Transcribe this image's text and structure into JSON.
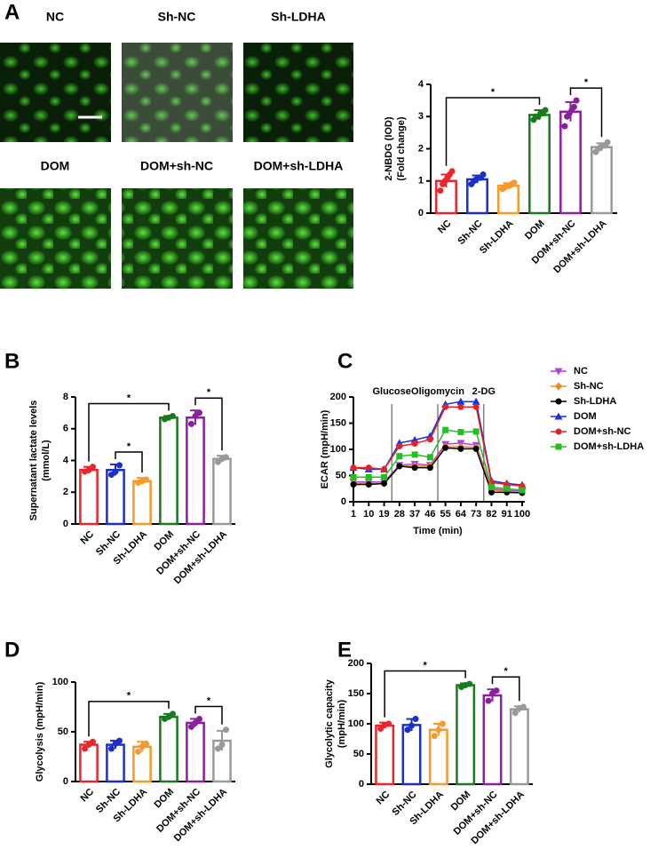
{
  "images": {
    "labels": [
      "NC",
      "Sh-NC",
      "Sh-LDHA",
      "DOM",
      "DOM+sh-NC",
      "DOM+sh-LDHA"
    ]
  },
  "chart_data": [
    {
      "type": "bar",
      "panel": "A",
      "ylabel": [
        "2-NBDG (IOD)",
        "(Fold change)"
      ],
      "categories": [
        "NC",
        "Sh-NC",
        "Sh-LDHA",
        "DOM",
        "DOM+sh-NC",
        "DOM+sh-LDHA"
      ],
      "values": [
        1.0,
        1.05,
        0.85,
        3.05,
        3.15,
        2.05
      ],
      "errors": [
        0.2,
        0.12,
        0.08,
        0.15,
        0.3,
        0.12
      ],
      "points": [
        [
          0.7,
          0.9,
          1.0,
          1.1,
          1.2,
          1.3
        ],
        [
          0.9,
          1.0,
          1.05,
          1.1,
          1.1,
          1.2
        ],
        [
          0.75,
          0.8,
          0.85,
          0.85,
          0.9,
          0.95
        ],
        [
          2.9,
          3.0,
          3.0,
          3.1,
          3.1,
          3.2
        ],
        [
          2.7,
          3.0,
          3.1,
          3.2,
          3.3,
          3.5
        ],
        [
          1.9,
          2.0,
          2.05,
          2.1,
          2.1,
          2.2
        ]
      ],
      "colors": [
        "#e8262b",
        "#1b2fc9",
        "#f59a2b",
        "#1a7a1f",
        "#8b1f9e",
        "#999999"
      ],
      "ylim": [
        0,
        4
      ],
      "yticks": [
        0,
        1,
        2,
        3,
        4
      ],
      "comparisons": [
        {
          "from": 0,
          "to": 3,
          "label": "*"
        },
        {
          "from": 4,
          "to": 5,
          "label": "*"
        }
      ]
    },
    {
      "type": "bar",
      "panel": "B",
      "ylabel": [
        "Supernatant lactate levels",
        "(mmol/L)"
      ],
      "categories": [
        "NC",
        "Sh-NC",
        "Sh-LDHA",
        "DOM",
        "DOM+sh-NC",
        "DOM+sh-LDHA"
      ],
      "values": [
        3.4,
        3.4,
        2.7,
        6.7,
        6.7,
        4.1
      ],
      "errors": [
        0.2,
        0.35,
        0.2,
        0.1,
        0.45,
        0.2
      ],
      "points": [
        [
          3.3,
          3.4,
          3.6
        ],
        [
          3.1,
          3.3,
          3.7
        ],
        [
          2.6,
          2.7,
          2.8
        ],
        [
          6.6,
          6.7,
          6.8
        ],
        [
          6.3,
          6.8,
          7.0
        ],
        [
          3.9,
          4.1,
          4.2
        ]
      ],
      "colors": [
        "#e8262b",
        "#1b2fc9",
        "#f59a2b",
        "#1a7a1f",
        "#8b1f9e",
        "#999999"
      ],
      "ylim": [
        0,
        8
      ],
      "yticks": [
        0,
        2,
        4,
        6,
        8
      ],
      "comparisons": [
        {
          "from": 0,
          "to": 3,
          "label": "*"
        },
        {
          "from": 1,
          "to": 2,
          "label": "*"
        },
        {
          "from": 4,
          "to": 5,
          "label": "*"
        }
      ]
    },
    {
      "type": "line",
      "panel": "C",
      "ylabel": "ECAR (mpH/min)",
      "xlabel": "Time (min)",
      "x": [
        1,
        10,
        19,
        28,
        37,
        46,
        55,
        64,
        73,
        82,
        91,
        100
      ],
      "xlim": [
        1,
        100
      ],
      "xticks": [
        1,
        10,
        19,
        28,
        37,
        46,
        55,
        64,
        73,
        82,
        91,
        100
      ],
      "ylim": [
        0,
        200
      ],
      "yticks": [
        0,
        50,
        100,
        150,
        200
      ],
      "legend": "right",
      "annotations": [
        {
          "x": 23.5,
          "label": "Glucose"
        },
        {
          "x": 50.5,
          "label": "Oligomycin"
        },
        {
          "x": 77.5,
          "label": "2-DG"
        }
      ],
      "series": [
        {
          "name": "NC",
          "color": "#b040e0",
          "marker": "triangle-down",
          "values": [
            38,
            38,
            38,
            70,
            72,
            70,
            110,
            112,
            108,
            25,
            22,
            20
          ]
        },
        {
          "name": "Sh-NC",
          "color": "#f08a20",
          "marker": "diamond",
          "values": [
            35,
            35,
            35,
            68,
            68,
            68,
            105,
            105,
            104,
            22,
            20,
            18
          ]
        },
        {
          "name": "Sh-LDHA",
          "color": "#000000",
          "marker": "circle",
          "values": [
            33,
            33,
            35,
            68,
            65,
            65,
            103,
            101,
            101,
            18,
            18,
            17
          ]
        },
        {
          "name": "DOM",
          "color": "#1a2fe0",
          "marker": "triangle",
          "values": [
            65,
            62,
            62,
            112,
            118,
            125,
            186,
            191,
            191,
            40,
            35,
            32
          ]
        },
        {
          "name": "DOM+sh-NC",
          "color": "#e82020",
          "marker": "circle",
          "values": [
            65,
            65,
            62,
            106,
            111,
            119,
            181,
            181,
            181,
            37,
            33,
            30
          ]
        },
        {
          "name": "DOM+sh-LDHA",
          "color": "#20c020",
          "marker": "square",
          "values": [
            47,
            47,
            47,
            87,
            90,
            85,
            137,
            133,
            134,
            28,
            25,
            22
          ]
        }
      ]
    },
    {
      "type": "bar",
      "panel": "D",
      "ylabel": [
        "Glycolysis (mpH/min)"
      ],
      "categories": [
        "NC",
        "Sh-NC",
        "Sh-LDHA",
        "DOM",
        "DOM+sh-NC",
        "DOM+sh-LDHA"
      ],
      "values": [
        37,
        37,
        35,
        65,
        59,
        41
      ],
      "errors": [
        3,
        4,
        5,
        3,
        4,
        10
      ],
      "points": [
        [
          33,
          37,
          40
        ],
        [
          33,
          38,
          41
        ],
        [
          30,
          35,
          38
        ],
        [
          63,
          65,
          68
        ],
        [
          55,
          59,
          63
        ],
        [
          33,
          37,
          52
        ]
      ],
      "colors": [
        "#e8262b",
        "#1b2fc9",
        "#f59a2b",
        "#1a7a1f",
        "#8b1f9e",
        "#999999"
      ],
      "ylim": [
        0,
        100
      ],
      "yticks": [
        0,
        50,
        100
      ],
      "comparisons": [
        {
          "from": 0,
          "to": 3,
          "label": "*"
        },
        {
          "from": 4,
          "to": 5,
          "label": "*"
        }
      ]
    },
    {
      "type": "bar",
      "panel": "E",
      "ylabel": [
        "Glycolytic capacity",
        "(mpH/min)"
      ],
      "categories": [
        "NC",
        "Sh-NC",
        "Sh-LDHA",
        "DOM",
        "DOM+sh-NC",
        "DOM+sh-LDHA"
      ],
      "values": [
        97,
        98,
        90,
        164,
        147,
        124
      ],
      "errors": [
        5,
        10,
        10,
        3,
        10,
        5
      ],
      "points": [
        [
          92,
          98,
          100
        ],
        [
          90,
          97,
          108
        ],
        [
          80,
          90,
          100
        ],
        [
          161,
          164,
          166
        ],
        [
          138,
          150,
          155
        ],
        [
          118,
          126,
          128
        ]
      ],
      "colors": [
        "#e8262b",
        "#1b2fc9",
        "#f59a2b",
        "#1a7a1f",
        "#8b1f9e",
        "#999999"
      ],
      "ylim": [
        0,
        200
      ],
      "yticks": [
        0,
        50,
        100,
        150,
        200
      ],
      "comparisons": [
        {
          "from": 0,
          "to": 3,
          "label": "*"
        },
        {
          "from": 4,
          "to": 5,
          "label": "*"
        }
      ]
    }
  ]
}
